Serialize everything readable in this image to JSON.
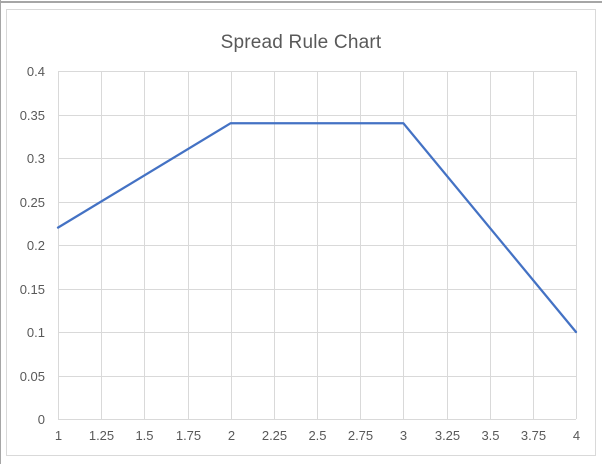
{
  "chart_data": {
    "type": "line",
    "title": "Spread Rule Chart",
    "x": [
      1,
      2,
      3,
      4
    ],
    "y": [
      0.22,
      0.34,
      0.34,
      0.1
    ],
    "xlim": [
      1,
      4
    ],
    "ylim": [
      0,
      0.4
    ],
    "x_tick_step": 0.25,
    "y_tick_step": 0.05,
    "x_tick_labels": [
      "1",
      "1.25",
      "1.5",
      "1.75",
      "2",
      "2.25",
      "2.5",
      "2.75",
      "3",
      "3.25",
      "3.5",
      "3.75",
      "4"
    ],
    "y_tick_labels": [
      "0",
      "0.05",
      "0.1",
      "0.15",
      "0.2",
      "0.25",
      "0.3",
      "0.35",
      "0.4"
    ],
    "xlabel": "",
    "ylabel": "",
    "grid": true,
    "legend": false,
    "line_color": "#4472C4",
    "gridline_color": "#d9d9d9",
    "axis_label_color": "#595959",
    "title_color": "#595959",
    "tick_font_size": 13
  },
  "window": {
    "edge_color": "#a6a6a6",
    "frame_border_color": "#d9d9d9",
    "background": "#ffffff"
  }
}
